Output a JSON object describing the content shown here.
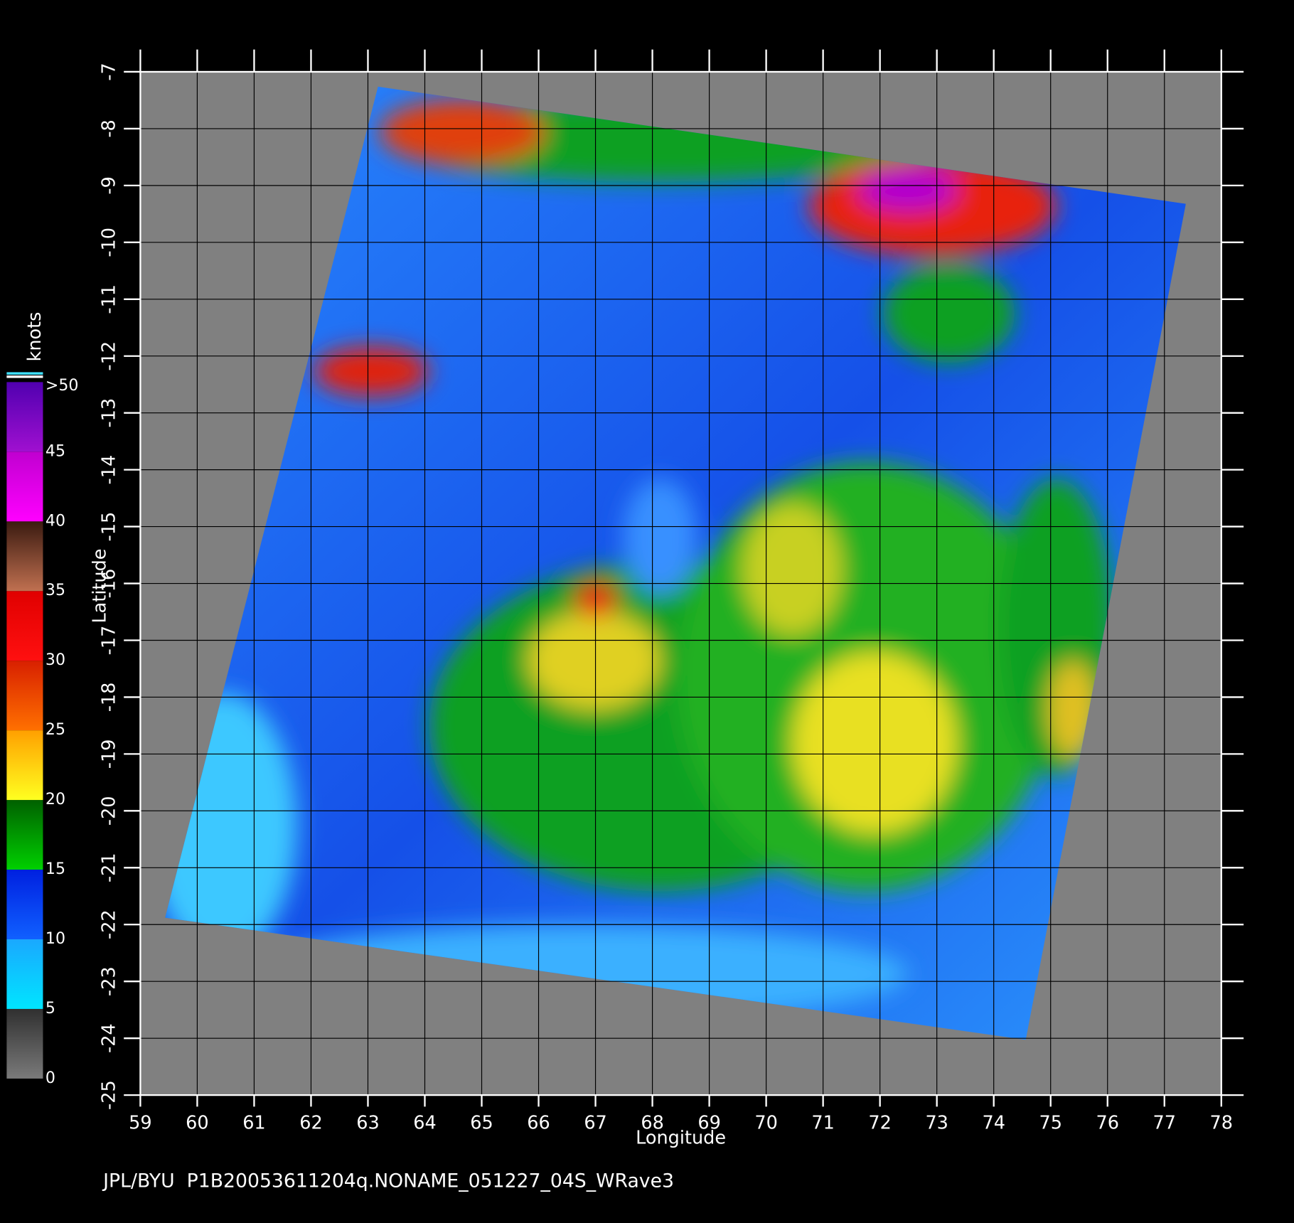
{
  "map": {
    "footer": "JPL/BYU  P1B20053611204q.NONAME_051227_04S_WRave3",
    "x_label": "Longitude",
    "y_label": "Latitude",
    "xlim": [
      59,
      78
    ],
    "ylim": [
      -25,
      -7
    ],
    "xticks": [
      59,
      60,
      61,
      62,
      63,
      64,
      65,
      66,
      67,
      68,
      69,
      70,
      71,
      72,
      73,
      74,
      75,
      76,
      77,
      78
    ],
    "yticks": [
      -25,
      -24,
      -23,
      -22,
      -21,
      -20,
      -19,
      -18,
      -17,
      -16,
      -15,
      -14,
      -13,
      -12,
      -11,
      -10,
      -9,
      -8,
      -7
    ],
    "colorbar": {
      "label": "knots",
      "lim": [
        0,
        50
      ],
      "ticks": [
        0,
        5,
        10,
        15,
        20,
        25,
        30,
        35,
        40,
        45,
        {
          "value": 50,
          "label": ">50"
        }
      ],
      "colors": [
        [
          "#7a7a7a",
          "#303030"
        ],
        [
          "#00e5ff",
          "#1aa8ff"
        ],
        [
          "#1060ff",
          "#0020e0"
        ],
        [
          "#00d000",
          "#006000"
        ],
        [
          "#ffff20",
          "#ffa000"
        ],
        [
          "#ff7000",
          "#d82000"
        ],
        [
          "#ff1010",
          "#e00000"
        ],
        [
          "#c07050",
          "#3a1a10"
        ],
        [
          "#ff00ff",
          "#c000d0"
        ],
        [
          "#a010d0",
          "#5000b0"
        ]
      ]
    }
  }
}
